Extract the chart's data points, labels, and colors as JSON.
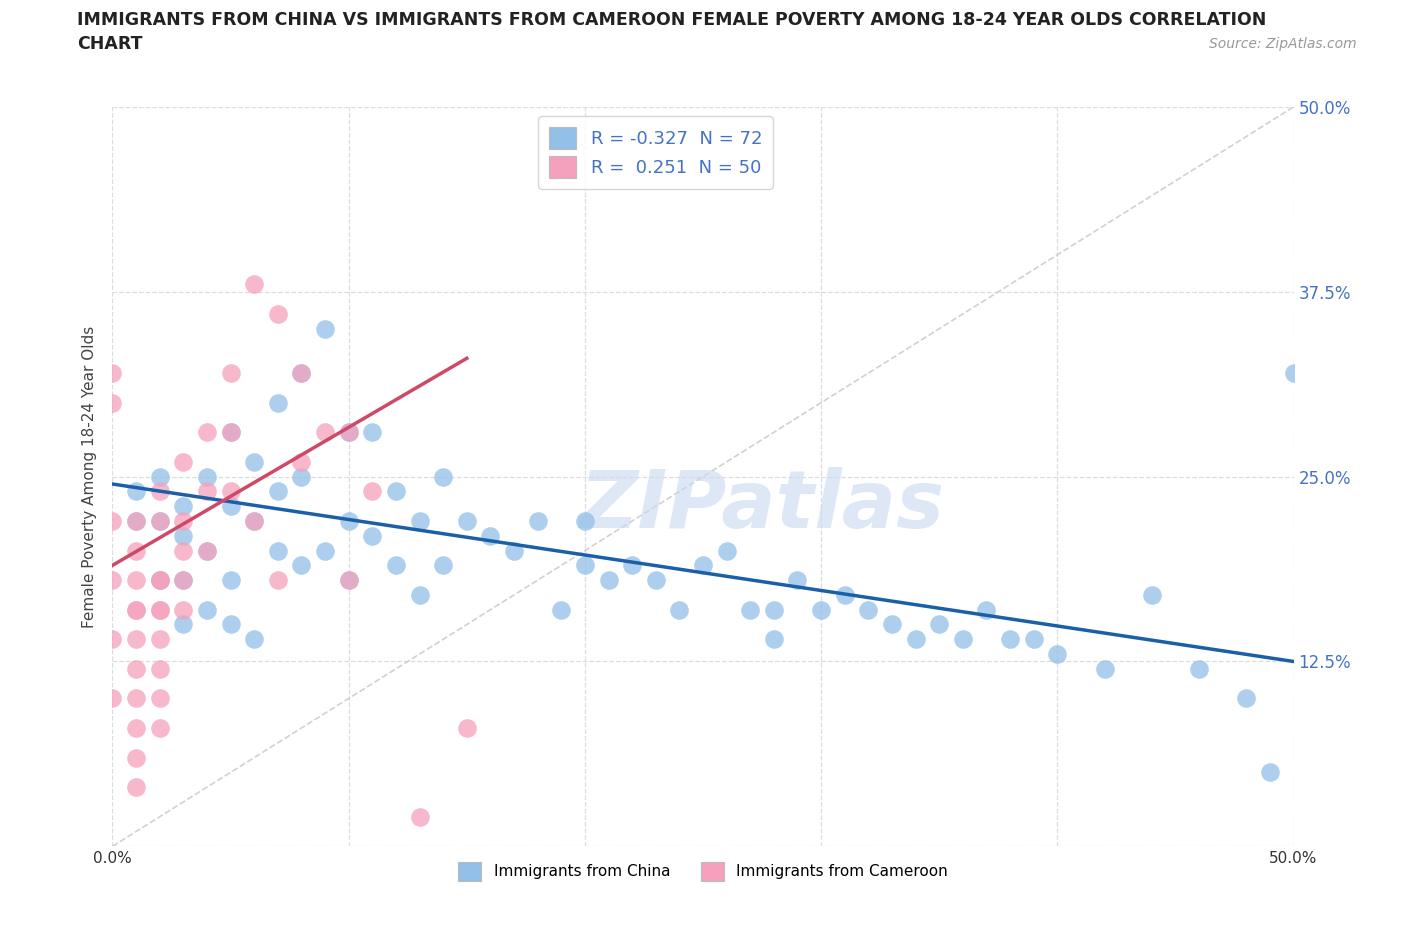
{
  "title_line1": "IMMIGRANTS FROM CHINA VS IMMIGRANTS FROM CAMEROON FEMALE POVERTY AMONG 18-24 YEAR OLDS CORRELATION",
  "title_line2": "CHART",
  "source": "Source: ZipAtlas.com",
  "ylabel": "Female Poverty Among 18-24 Year Olds",
  "xlim": [
    0.0,
    0.5
  ],
  "ylim": [
    0.0,
    0.5
  ],
  "xticks": [
    0.0,
    0.1,
    0.2,
    0.3,
    0.4,
    0.5
  ],
  "yticks": [
    0.0,
    0.125,
    0.25,
    0.375,
    0.5
  ],
  "background_color": "#ffffff",
  "china_color": "#92c0e8",
  "cameroon_color": "#f5a0bc",
  "china_line_color": "#1a5fa8",
  "cameroon_line_color": "#d04868",
  "diagonal_color": "#cccccc",
  "china_R": -0.327,
  "china_N": 72,
  "cameroon_R": 0.251,
  "cameroon_N": 50,
  "watermark": "ZIPatlas",
  "watermark_color": "#c8d8f0",
  "china_scatter_x": [
    0.01,
    0.01,
    0.02,
    0.02,
    0.02,
    0.03,
    0.03,
    0.03,
    0.03,
    0.04,
    0.04,
    0.04,
    0.05,
    0.05,
    0.05,
    0.05,
    0.06,
    0.06,
    0.06,
    0.07,
    0.07,
    0.07,
    0.08,
    0.08,
    0.08,
    0.09,
    0.09,
    0.1,
    0.1,
    0.1,
    0.11,
    0.11,
    0.12,
    0.12,
    0.13,
    0.13,
    0.14,
    0.14,
    0.15,
    0.16,
    0.17,
    0.18,
    0.19,
    0.2,
    0.2,
    0.21,
    0.22,
    0.23,
    0.24,
    0.25,
    0.26,
    0.27,
    0.28,
    0.28,
    0.29,
    0.3,
    0.31,
    0.32,
    0.33,
    0.34,
    0.35,
    0.36,
    0.37,
    0.38,
    0.39,
    0.4,
    0.42,
    0.44,
    0.46,
    0.48,
    0.49,
    0.5
  ],
  "china_scatter_y": [
    0.24,
    0.22,
    0.25,
    0.22,
    0.18,
    0.23,
    0.21,
    0.18,
    0.15,
    0.25,
    0.2,
    0.16,
    0.28,
    0.23,
    0.18,
    0.15,
    0.26,
    0.22,
    0.14,
    0.3,
    0.24,
    0.2,
    0.32,
    0.25,
    0.19,
    0.35,
    0.2,
    0.28,
    0.22,
    0.18,
    0.28,
    0.21,
    0.24,
    0.19,
    0.22,
    0.17,
    0.25,
    0.19,
    0.22,
    0.21,
    0.2,
    0.22,
    0.16,
    0.22,
    0.19,
    0.18,
    0.19,
    0.18,
    0.16,
    0.19,
    0.2,
    0.16,
    0.16,
    0.14,
    0.18,
    0.16,
    0.17,
    0.16,
    0.15,
    0.14,
    0.15,
    0.14,
    0.16,
    0.14,
    0.14,
    0.13,
    0.12,
    0.17,
    0.12,
    0.1,
    0.05,
    0.32
  ],
  "cameroon_scatter_x": [
    0.0,
    0.0,
    0.0,
    0.0,
    0.0,
    0.0,
    0.01,
    0.01,
    0.01,
    0.01,
    0.01,
    0.01,
    0.01,
    0.01,
    0.01,
    0.01,
    0.01,
    0.02,
    0.02,
    0.02,
    0.02,
    0.02,
    0.02,
    0.02,
    0.02,
    0.02,
    0.02,
    0.03,
    0.03,
    0.03,
    0.03,
    0.03,
    0.04,
    0.04,
    0.04,
    0.05,
    0.05,
    0.05,
    0.06,
    0.06,
    0.07,
    0.07,
    0.08,
    0.08,
    0.09,
    0.1,
    0.1,
    0.11,
    0.13,
    0.15
  ],
  "cameroon_scatter_y": [
    0.22,
    0.3,
    0.32,
    0.18,
    0.14,
    0.1,
    0.22,
    0.2,
    0.18,
    0.16,
    0.14,
    0.12,
    0.1,
    0.08,
    0.06,
    0.16,
    0.04,
    0.24,
    0.22,
    0.18,
    0.16,
    0.14,
    0.12,
    0.1,
    0.08,
    0.16,
    0.18,
    0.26,
    0.22,
    0.2,
    0.18,
    0.16,
    0.28,
    0.24,
    0.2,
    0.32,
    0.28,
    0.24,
    0.38,
    0.22,
    0.36,
    0.18,
    0.32,
    0.26,
    0.28,
    0.18,
    0.28,
    0.24,
    0.02,
    0.08
  ],
  "china_line_x0": 0.0,
  "china_line_x1": 0.5,
  "china_line_y0": 0.245,
  "china_line_y1": 0.125,
  "cameroon_line_x0": 0.0,
  "cameroon_line_x1": 0.15,
  "cameroon_line_y0": 0.19,
  "cameroon_line_y1": 0.33
}
